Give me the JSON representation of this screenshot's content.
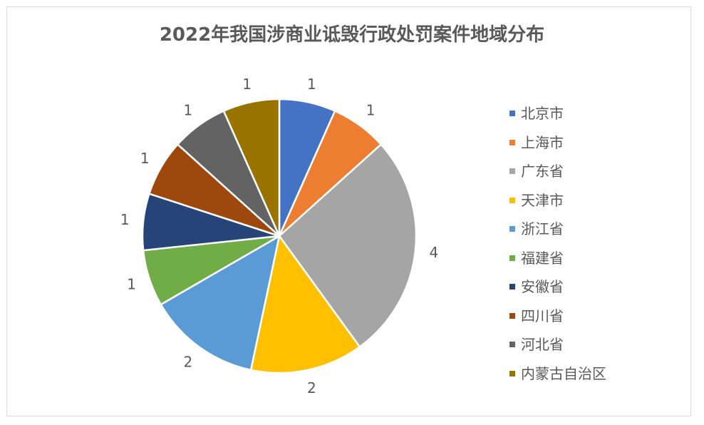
{
  "chart_data": {
    "type": "pie",
    "title": "2022年我国涉商业诋毁行政处罚案件地域分布",
    "legend_position": "right",
    "categories": [
      "北京市",
      "上海市",
      "广东省",
      "天津市",
      "浙江省",
      "福建省",
      "安徽省",
      "四川省",
      "河北省",
      "内蒙古自治区"
    ],
    "values": [
      1,
      1,
      4,
      2,
      2,
      1,
      1,
      1,
      1,
      1
    ],
    "data_labels": [
      "1",
      "1",
      "4",
      "2",
      "2",
      "1",
      "1",
      "1",
      "1",
      "1"
    ],
    "colors": [
      "#4472C4",
      "#ED7D31",
      "#A5A5A5",
      "#FFC000",
      "#5B9BD5",
      "#70AD47",
      "#264478",
      "#9E480E",
      "#636363",
      "#997300"
    ]
  }
}
